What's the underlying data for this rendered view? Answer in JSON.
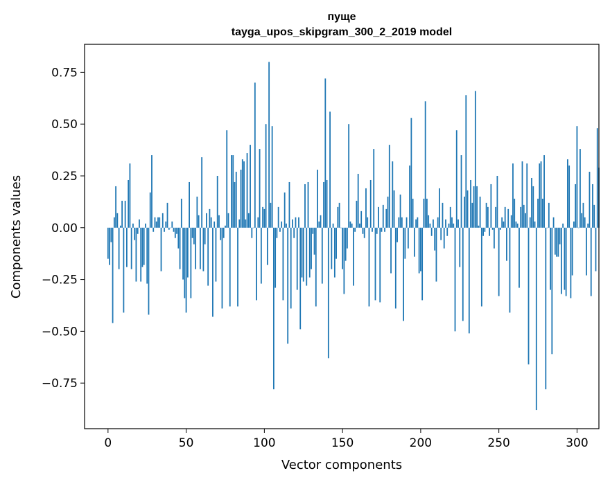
{
  "chart_data": {
    "type": "bar",
    "title_line1": "пуще",
    "title_line2": "tayga_upos_skipgram_300_2_2019 model",
    "xlabel": "Vector components",
    "ylabel": "Components values",
    "xlim": [
      -15,
      314
    ],
    "ylim": [
      -0.97,
      0.885
    ],
    "xticks": [
      0,
      50,
      100,
      150,
      200,
      250,
      300
    ],
    "xtick_labels": [
      "0",
      "50",
      "100",
      "150",
      "200",
      "250",
      "300"
    ],
    "yticks": [
      0.75,
      0.5,
      0.25,
      0.0,
      -0.25,
      -0.5,
      -0.75
    ],
    "ytick_labels": [
      "0.75",
      "0.50",
      "0.25",
      "0.00",
      "−0.25",
      "−0.50",
      "−0.75"
    ],
    "bar_color": "#1f77b4",
    "values": [
      -0.15,
      -0.18,
      -0.07,
      -0.46,
      0.05,
      0.2,
      0.07,
      -0.2,
      0.01,
      0.13,
      -0.41,
      0.13,
      -0.19,
      0.23,
      0.31,
      -0.2,
      0.02,
      -0.06,
      -0.26,
      -0.03,
      0.04,
      -0.26,
      -0.19,
      -0.18,
      0.02,
      -0.27,
      -0.42,
      0.17,
      0.35,
      -0.02,
      0.05,
      0.03,
      0.05,
      0.05,
      -0.21,
      0.07,
      -0.02,
      0.03,
      0.12,
      -0.01,
      0.0,
      0.03,
      -0.02,
      -0.05,
      -0.03,
      -0.1,
      -0.2,
      0.14,
      -0.25,
      -0.34,
      -0.41,
      -0.24,
      0.22,
      -0.34,
      -0.05,
      -0.08,
      -0.2,
      0.15,
      0.06,
      -0.2,
      0.34,
      -0.21,
      -0.08,
      0.07,
      -0.28,
      0.09,
      0.05,
      -0.43,
      0.03,
      -0.26,
      0.25,
      0.06,
      -0.06,
      -0.39,
      -0.05,
      0.01,
      0.47,
      0.07,
      -0.38,
      0.35,
      0.35,
      0.22,
      0.27,
      -0.38,
      0.04,
      0.28,
      0.33,
      0.32,
      0.04,
      0.36,
      0.07,
      0.4,
      -0.05,
      0.0,
      0.7,
      -0.35,
      0.05,
      0.38,
      -0.27,
      0.1,
      0.09,
      0.5,
      -0.18,
      0.8,
      0.12,
      0.49,
      -0.78,
      -0.29,
      -0.05,
      0.1,
      -0.02,
      0.03,
      -0.35,
      0.17,
      0.02,
      -0.56,
      0.22,
      -0.39,
      0.04,
      -0.05,
      0.05,
      -0.3,
      0.05,
      -0.49,
      -0.24,
      -0.26,
      0.21,
      -0.28,
      0.22,
      -0.24,
      -0.2,
      -0.03,
      -0.13,
      -0.38,
      0.28,
      0.03,
      0.06,
      -0.27,
      0.22,
      0.72,
      0.23,
      -0.63,
      0.56,
      -0.2,
      0.02,
      -0.24,
      -0.15,
      0.1,
      0.12,
      0.0,
      -0.2,
      -0.32,
      -0.16,
      -0.1,
      0.5,
      0.03,
      0.02,
      -0.28,
      -0.02,
      0.13,
      0.26,
      0.02,
      0.08,
      -0.03,
      -0.05,
      0.19,
      0.05,
      -0.38,
      0.23,
      -0.02,
      0.38,
      -0.35,
      -0.03,
      0.1,
      -0.36,
      -0.02,
      0.11,
      -0.02,
      0.09,
      0.15,
      0.4,
      -0.22,
      0.32,
      0.18,
      -0.39,
      -0.07,
      0.05,
      0.16,
      0.05,
      -0.45,
      -0.15,
      0.05,
      -0.1,
      0.3,
      0.53,
      0.14,
      -0.14,
      0.04,
      0.05,
      -0.22,
      -0.21,
      -0.35,
      0.14,
      0.61,
      0.14,
      0.06,
      0.02,
      -0.04,
      0.04,
      -0.11,
      -0.26,
      0.05,
      0.19,
      -0.06,
      0.12,
      -0.1,
      0.04,
      -0.04,
      0.02,
      0.1,
      0.05,
      0.02,
      -0.5,
      0.47,
      0.04,
      -0.19,
      0.35,
      -0.45,
      0.15,
      0.64,
      0.18,
      -0.51,
      0.23,
      0.12,
      0.2,
      0.66,
      0.2,
      0.01,
      0.15,
      -0.38,
      -0.04,
      -0.02,
      0.12,
      0.1,
      -0.04,
      0.21,
      -0.01,
      -0.1,
      0.1,
      0.25,
      -0.33,
      -0.01,
      0.05,
      0.03,
      0.1,
      -0.16,
      0.09,
      -0.41,
      0.06,
      0.31,
      0.14,
      0.03,
      0.02,
      -0.29,
      0.1,
      0.32,
      0.11,
      0.07,
      0.31,
      -0.66,
      0.05,
      0.24,
      0.2,
      0.03,
      -0.88,
      0.14,
      0.31,
      0.32,
      0.14,
      0.35,
      -0.78,
      0.0,
      0.12,
      -0.3,
      -0.61,
      0.05,
      -0.13,
      -0.14,
      -0.14,
      -0.08,
      -0.32,
      0.02,
      -0.3,
      -0.33,
      0.33,
      0.3,
      -0.34,
      -0.23,
      0.03,
      0.21,
      0.49,
      0.0,
      0.38,
      0.07,
      0.12,
      0.05,
      -0.23,
      0.02,
      0.27,
      -0.33,
      0.21,
      0.11,
      -0.21,
      0.48,
      0.29
    ]
  }
}
